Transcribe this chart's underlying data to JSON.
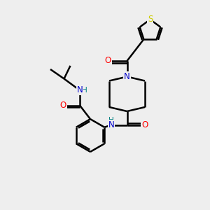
{
  "bg_color": "#eeeeee",
  "atom_color_N": "#0000cc",
  "atom_color_O": "#ff0000",
  "atom_color_S": "#cccc00",
  "atom_color_H": "#008080",
  "line_color": "#000000",
  "line_width": 1.8,
  "figsize": [
    3.0,
    3.0
  ],
  "dpi": 100,
  "xlim": [
    0,
    10
  ],
  "ylim": [
    0,
    10
  ]
}
